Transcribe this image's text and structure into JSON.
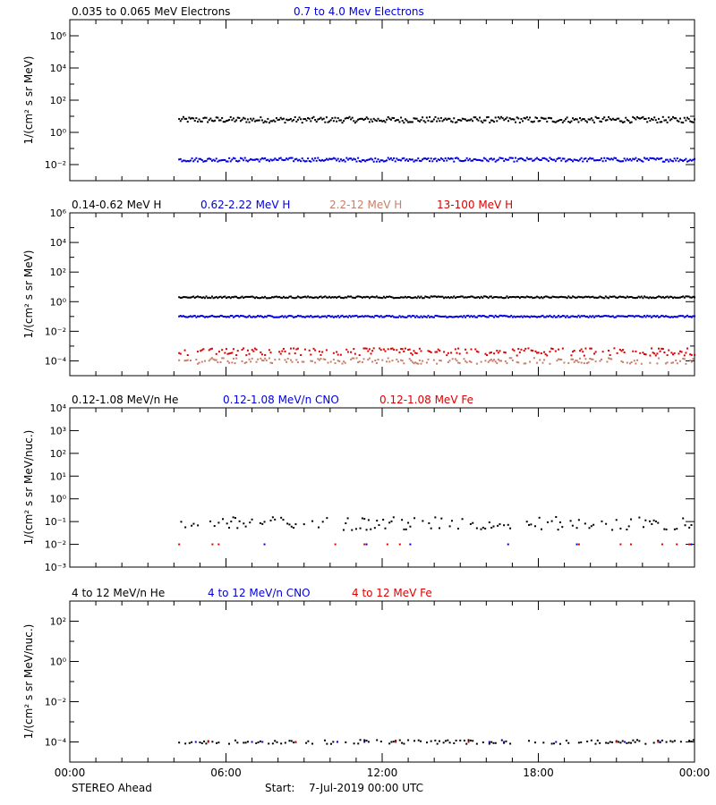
{
  "colors": {
    "black": "#000000",
    "blue": "#0000dd",
    "salmon": "#c87f6a",
    "red": "#dd0000"
  },
  "footer": {
    "spacecraft": "STEREO Ahead",
    "start_label": "Start:",
    "start_value": "7-Jul-2019 00:00 UTC"
  },
  "x_axis": {
    "range_hours": [
      0,
      24
    ],
    "ticks": [
      0,
      6,
      12,
      18,
      24
    ],
    "tick_labels": [
      "00:00",
      "06:00",
      "12:00",
      "18:00",
      "00:00"
    ]
  },
  "chart_data": [
    {
      "type": "scatter",
      "ylabel": "1/(cm² s sr MeV)",
      "yscale": "log",
      "ylim_exp": [
        -3,
        7
      ],
      "ytick_exps": [
        -2,
        0,
        2,
        4,
        6
      ],
      "ytick_labels": [
        "10⁻²",
        "10⁰",
        "10²",
        "10⁴",
        "10⁶"
      ],
      "series": [
        {
          "name": "0.035 to 0.065 MeV Electrons",
          "color": "#000000",
          "x_start_hours": 4.2,
          "x_end_hours": 24,
          "typical_value": 6,
          "variation_exp": 0.18
        },
        {
          "name": "0.7 to 4.0 Mev Electrons",
          "color": "#0000dd",
          "x_start_hours": 4.2,
          "x_end_hours": 24,
          "typical_value": 0.02,
          "variation_exp": 0.12
        }
      ]
    },
    {
      "type": "scatter",
      "ylabel": "1/(cm² s sr MeV)",
      "yscale": "log",
      "ylim_exp": [
        -5,
        6
      ],
      "ytick_exps": [
        -4,
        -2,
        0,
        2,
        4,
        6
      ],
      "ytick_labels": [
        "10⁻⁴",
        "10⁻²",
        "10⁰",
        "10²",
        "10⁴",
        "10⁶"
      ],
      "series": [
        {
          "name": "0.14-0.62 MeV H",
          "color": "#000000",
          "x_start_hours": 4.2,
          "x_end_hours": 24,
          "typical_value": 2,
          "variation_exp": 0.06
        },
        {
          "name": "0.62-2.22 MeV H",
          "color": "#0000dd",
          "x_start_hours": 4.2,
          "x_end_hours": 24,
          "typical_value": 0.1,
          "variation_exp": 0.06
        },
        {
          "name": "2.2-12 MeV H",
          "color": "#c87f6a",
          "x_start_hours": 4.2,
          "x_end_hours": 24,
          "typical_value": 0.0001,
          "variation_exp": 0.2
        },
        {
          "name": "13-100 MeV H",
          "color": "#dd0000",
          "x_start_hours": 4.2,
          "x_end_hours": 24,
          "typical_value": 0.0004,
          "variation_exp": 0.25
        }
      ]
    },
    {
      "type": "scatter",
      "ylabel": "1/(cm² s sr MeV/nuc.)",
      "yscale": "log",
      "ylim_exp": [
        -3,
        4
      ],
      "ytick_exps": [
        -3,
        -2,
        -1,
        0,
        1,
        2,
        3,
        4
      ],
      "ytick_labels": [
        "10⁻³",
        "10⁻²",
        "10⁻¹",
        "10⁰",
        "10¹",
        "10²",
        "10³",
        "10⁴"
      ],
      "series": [
        {
          "name": "0.12-1.08 MeV/n He",
          "color": "#000000",
          "x_start_hours": 4.2,
          "x_end_hours": 24,
          "typical_value": 0.08,
          "variation_exp": 0.3
        },
        {
          "name": "0.12-1.08 MeV/n CNO",
          "color": "#0000dd",
          "x_start_hours": 4.2,
          "x_end_hours": 24,
          "typical_value": 0.01,
          "variation_exp": 0.0
        },
        {
          "name": "0.12-1.08 MeV Fe",
          "color": "#dd0000",
          "x_start_hours": 4.2,
          "x_end_hours": 24,
          "typical_value": 0.01,
          "variation_exp": 0.0
        }
      ]
    },
    {
      "type": "scatter",
      "ylabel": "1/(cm² s sr MeV/nuc.)",
      "yscale": "log",
      "ylim_exp": [
        -5,
        3
      ],
      "ytick_exps": [
        -4,
        -2,
        0,
        2
      ],
      "ytick_labels": [
        "10⁻⁴",
        "10⁻²",
        "10⁰",
        "10²"
      ],
      "series": [
        {
          "name": "4 to 12 MeV/n He",
          "color": "#000000",
          "x_start_hours": 4.2,
          "x_end_hours": 24,
          "typical_value": 0.0001,
          "variation_exp": 0.1
        },
        {
          "name": "4 to 12 MeV/n CNO",
          "color": "#0000dd",
          "x_start_hours": 4.2,
          "x_end_hours": 24,
          "typical_value": 0.0001,
          "variation_exp": 0.0
        },
        {
          "name": "4 to 12 MeV Fe",
          "color": "#dd0000",
          "x_start_hours": 4.2,
          "x_end_hours": 24,
          "typical_value": 0.0001,
          "variation_exp": 0.0
        }
      ]
    }
  ]
}
